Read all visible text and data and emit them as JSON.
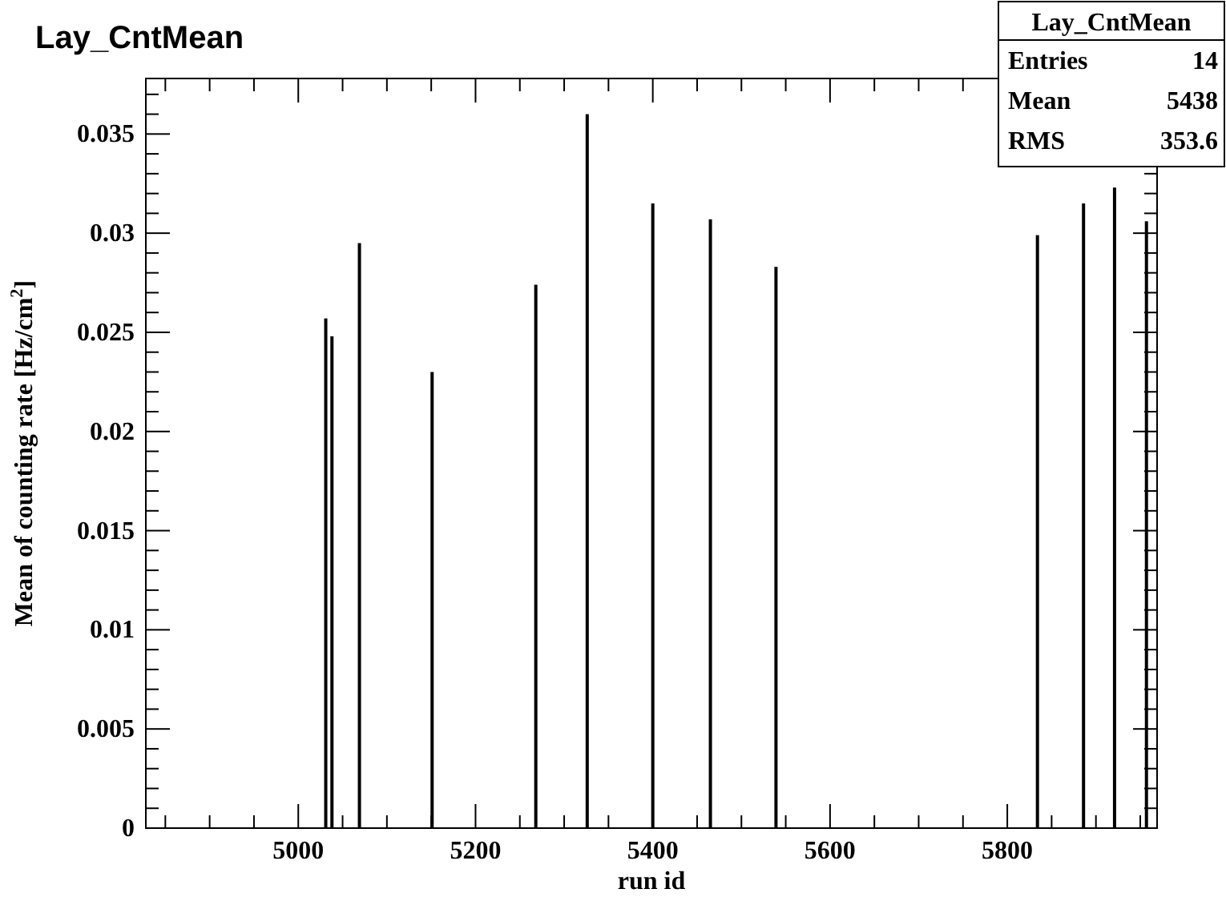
{
  "chart_data": {
    "type": "bar",
    "title": "Lay_CntMean",
    "xlabel": "run id",
    "ylabel": "Mean of counting rate [Hz/cm$^{2}$]",
    "x": [
      5031,
      5038,
      5069,
      5151,
      5268,
      5326,
      5400,
      5465,
      5539,
      5834,
      5886,
      5921,
      5957
    ],
    "values": [
      0.0257,
      0.0248,
      0.0295,
      0.023,
      0.0274,
      0.036,
      0.0315,
      0.0307,
      0.0283,
      0.0299,
      0.0315,
      0.0323,
      0.0306
    ],
    "color": "#000000",
    "xlim": [
      4828,
      5969
    ],
    "ylim": [
      0,
      0.0378
    ],
    "xticks": [
      {
        "value": 4850,
        "label": null
      },
      {
        "value": 4900,
        "label": null
      },
      {
        "value": 4950,
        "label": null
      },
      5000,
      {
        "value": 5050,
        "label": null
      },
      {
        "value": 5100,
        "label": null
      },
      {
        "value": 5150,
        "label": null
      },
      5200,
      {
        "value": 5250,
        "label": null
      },
      {
        "value": 5300,
        "label": null
      },
      {
        "value": 5350,
        "label": null
      },
      5400,
      {
        "value": 5450,
        "label": null
      },
      {
        "value": 5500,
        "label": null
      },
      {
        "value": 5550,
        "label": null
      },
      5600,
      {
        "value": 5650,
        "label": null
      },
      {
        "value": 5700,
        "label": null
      },
      {
        "value": 5750,
        "label": null
      },
      5800,
      {
        "value": 5850,
        "label": null
      },
      {
        "value": 5900,
        "label": null
      },
      {
        "value": 5950,
        "label": null
      }
    ],
    "yticks": [
      0,
      {
        "value": 0.001,
        "label": null
      },
      {
        "value": 0.002,
        "label": null
      },
      {
        "value": 0.003,
        "label": null
      },
      {
        "value": 0.004,
        "label": null
      },
      0.005,
      {
        "value": 0.006,
        "label": null
      },
      {
        "value": 0.007,
        "label": null
      },
      {
        "value": 0.008,
        "label": null
      },
      {
        "value": 0.009,
        "label": null
      },
      0.01,
      {
        "value": 0.011,
        "label": null
      },
      {
        "value": 0.012,
        "label": null
      },
      {
        "value": 0.013,
        "label": null
      },
      {
        "value": 0.014,
        "label": null
      },
      0.015,
      {
        "value": 0.016,
        "label": null
      },
      {
        "value": 0.017,
        "label": null
      },
      {
        "value": 0.018,
        "label": null
      },
      {
        "value": 0.019,
        "label": null
      },
      0.02,
      {
        "value": 0.021,
        "label": null
      },
      {
        "value": 0.022,
        "label": null
      },
      {
        "value": 0.023,
        "label": null
      },
      {
        "value": 0.024,
        "label": null
      },
      0.025,
      {
        "value": 0.026,
        "label": null
      },
      {
        "value": 0.027,
        "label": null
      },
      {
        "value": 0.028,
        "label": null
      },
      {
        "value": 0.029,
        "label": null
      },
      0.03,
      {
        "value": 0.031,
        "label": null
      },
      {
        "value": 0.032,
        "label": null
      },
      {
        "value": 0.033,
        "label": null
      },
      {
        "value": 0.034,
        "label": null
      },
      0.035,
      {
        "value": 0.036,
        "label": null
      },
      {
        "value": 0.037,
        "label": null
      }
    ],
    "annotations": [
      "Lay_CntMean",
      "Entries",
      "14",
      "Mean",
      "5438",
      "RMS",
      "353.6"
    ],
    "grid": false
  }
}
